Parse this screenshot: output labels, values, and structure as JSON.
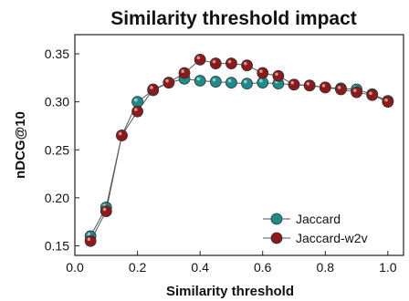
{
  "chart_data": {
    "type": "line",
    "title": "Similarity threshold impact",
    "xlabel": "Similarity threshold",
    "ylabel": "nDCG@10",
    "xlim": [
      0.0,
      1.05
    ],
    "ylim": [
      0.14,
      0.37
    ],
    "xticks": [
      "0.0",
      "0.2",
      "0.4",
      "0.6",
      "0.8",
      "1.0"
    ],
    "yticks": [
      "0.15",
      "0.20",
      "0.25",
      "0.30",
      "0.35"
    ],
    "grid": false,
    "legend_position": "lower-right",
    "series": [
      {
        "name": "Jaccard",
        "color": "#1f8a8a",
        "x": [
          0.05,
          0.1,
          0.15,
          0.2,
          0.25,
          0.3,
          0.35,
          0.4,
          0.45,
          0.5,
          0.55,
          0.6,
          0.65,
          0.7,
          0.75,
          0.8,
          0.85,
          0.9,
          0.95,
          1.0
        ],
        "y": [
          0.16,
          0.19,
          0.265,
          0.3,
          0.312,
          0.32,
          0.324,
          0.322,
          0.321,
          0.32,
          0.319,
          0.32,
          0.319,
          0.318,
          0.317,
          0.315,
          0.314,
          0.313,
          0.308,
          0.301
        ]
      },
      {
        "name": "Jaccard-w2v",
        "color": "#8b1a1a",
        "x": [
          0.05,
          0.1,
          0.15,
          0.2,
          0.25,
          0.3,
          0.35,
          0.4,
          0.45,
          0.5,
          0.55,
          0.6,
          0.65,
          0.7,
          0.75,
          0.8,
          0.85,
          0.9,
          0.95,
          1.0
        ],
        "y": [
          0.155,
          0.186,
          0.265,
          0.29,
          0.313,
          0.32,
          0.33,
          0.344,
          0.34,
          0.34,
          0.338,
          0.33,
          0.327,
          0.318,
          0.317,
          0.315,
          0.313,
          0.31,
          0.307,
          0.3
        ]
      }
    ]
  }
}
